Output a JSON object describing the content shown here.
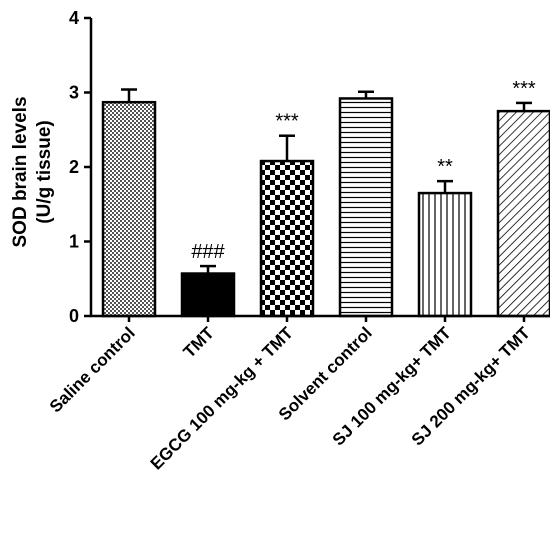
{
  "chart_data": {
    "type": "bar",
    "ylabel_line1": "SOD brain levels",
    "ylabel_line2": "(U/g tissue)",
    "ylim": [
      0,
      4
    ],
    "yticks": [
      "0",
      "1",
      "2",
      "3",
      "4"
    ],
    "grid": false,
    "legend": "none",
    "bars": [
      {
        "category": "Saline control",
        "value": 2.87,
        "error": 0.17,
        "annotation": "",
        "pattern": "checker-fine"
      },
      {
        "category": "TMT",
        "value": 0.57,
        "error": 0.1,
        "annotation": "###",
        "pattern": "solid"
      },
      {
        "category": "EGCG 100 mg-kg + TMT",
        "value": 2.08,
        "error": 0.34,
        "annotation": "***",
        "pattern": "checker-coarse"
      },
      {
        "category": "Solvent control",
        "value": 2.92,
        "error": 0.09,
        "annotation": "",
        "pattern": "horizontal"
      },
      {
        "category": "SJ 100 mg-kg+ TMT",
        "value": 1.65,
        "error": 0.16,
        "annotation": "**",
        "pattern": "vertical"
      },
      {
        "category": "SJ 200 mg-kg+ TMT",
        "value": 2.75,
        "error": 0.11,
        "annotation": "***",
        "pattern": "diagonal"
      }
    ]
  }
}
